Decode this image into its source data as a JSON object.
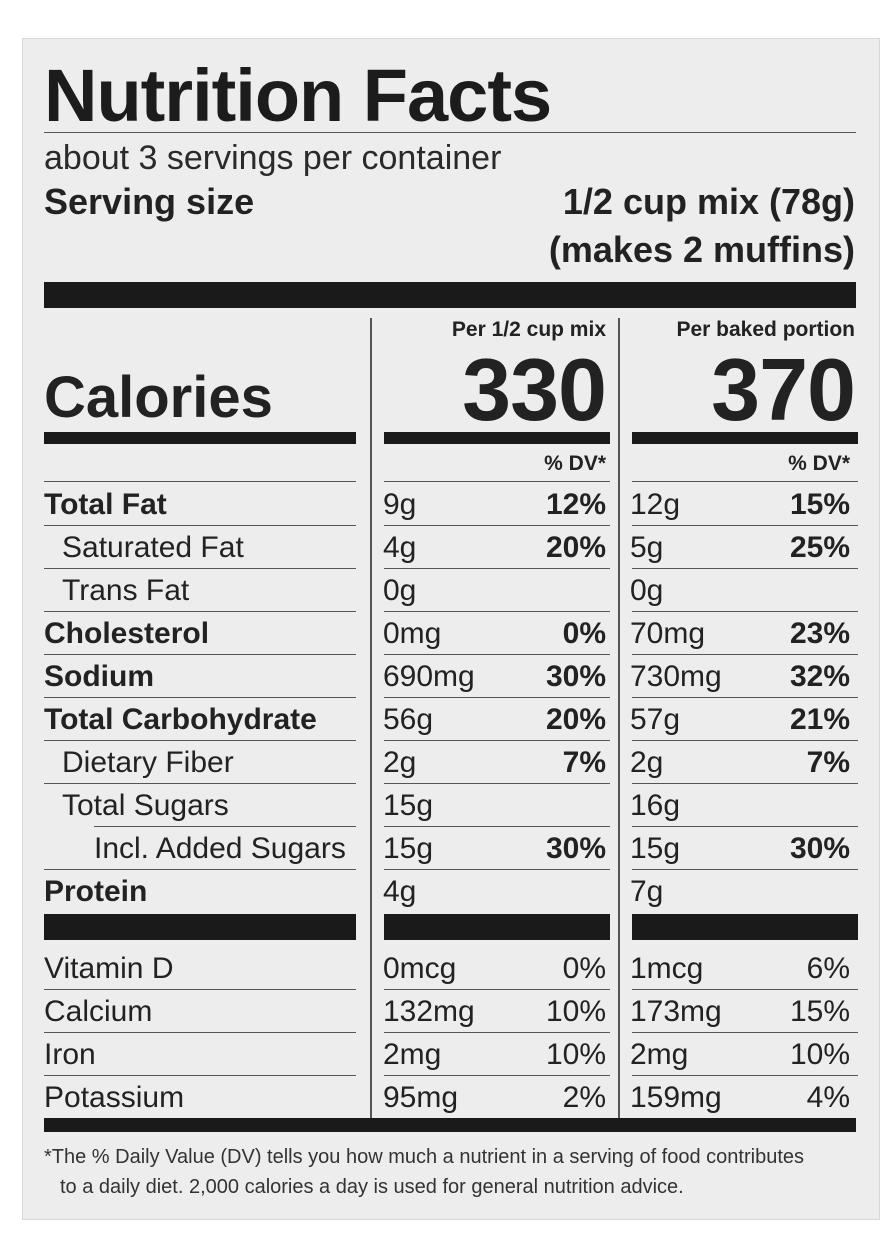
{
  "label": {
    "title": "Nutrition Facts",
    "servings": "about 3 servings per container",
    "serving_size_label": "Serving size",
    "serving_size_value": "1/2 cup mix (78g)",
    "serving_size_note": "(makes 2 muffins)",
    "col1_header": "Per 1/2 cup mix",
    "col2_header": "Per baked portion",
    "calories_label": "Calories",
    "calories_col1": "330",
    "calories_col2": "370",
    "dv_header": "% DV*",
    "nutrients": [
      {
        "name": "Total Fat",
        "c1": "9g",
        "d1": "12%",
        "c2": "12g",
        "d2": "15%"
      },
      {
        "name": "Saturated Fat",
        "c1": "4g",
        "d1": "20%",
        "c2": "5g",
        "d2": "25%"
      },
      {
        "name": "Trans Fat",
        "c1": "0g",
        "d1": "",
        "c2": "0g",
        "d2": ""
      },
      {
        "name": "Cholesterol",
        "c1": "0mg",
        "d1": "0%",
        "c2": "70mg",
        "d2": "23%"
      },
      {
        "name": "Sodium",
        "c1": "690mg",
        "d1": "30%",
        "c2": "730mg",
        "d2": "32%"
      },
      {
        "name": "Total Carbohydrate",
        "c1": "56g",
        "d1": "20%",
        "c2": "57g",
        "d2": "21%"
      },
      {
        "name": "Dietary Fiber",
        "c1": "2g",
        "d1": "7%",
        "c2": "2g",
        "d2": "7%"
      },
      {
        "name": "Total Sugars",
        "c1": "15g",
        "d1": "",
        "c2": "16g",
        "d2": ""
      },
      {
        "name": "Incl. Added Sugars",
        "c1": "15g",
        "d1": "30%",
        "c2": "15g",
        "d2": "30%"
      },
      {
        "name": "Protein",
        "c1": "4g",
        "d1": "",
        "c2": "7g",
        "d2": ""
      }
    ],
    "vitamins": [
      {
        "name": "Vitamin D",
        "c1": "0mcg",
        "d1": "0%",
        "c2": "1mcg",
        "d2": "6%"
      },
      {
        "name": "Calcium",
        "c1": "132mg",
        "d1": "10%",
        "c2": "173mg",
        "d2": "15%"
      },
      {
        "name": "Iron",
        "c1": "2mg",
        "d1": "10%",
        "c2": "2mg",
        "d2": "10%"
      },
      {
        "name": "Potassium",
        "c1": "95mg",
        "d1": "2%",
        "c2": "159mg",
        "d2": "4%"
      }
    ],
    "footnote_line1": "*The % Daily Value (DV) tells you how much a nutrient in a serving of food contributes",
    "footnote_line2": "to a daily diet. 2,000 calories a day is used for general nutrition advice."
  }
}
